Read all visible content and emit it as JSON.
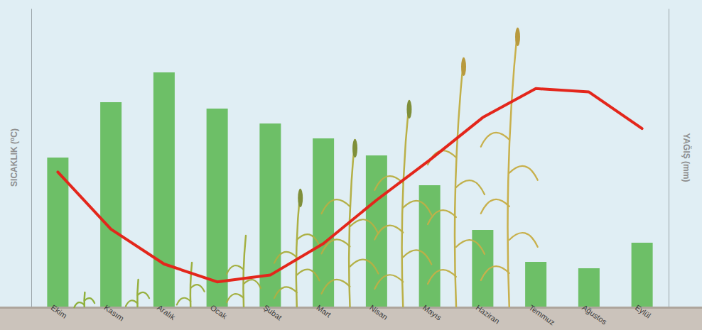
{
  "chart_data": {
    "type": "bar",
    "ylabel": "SICAKLIK (⁰C)",
    "y2label": "YAĞIŞ (mm)",
    "categories": [
      "Ekim",
      "Kasım",
      "Aralık",
      "Ocak",
      "Şubat",
      "Mart",
      "Nisan",
      "Mayıs",
      "Haziran",
      "Temmuz",
      "Ağustos",
      "Eylül"
    ],
    "series": [
      {
        "type": "line",
        "color": "#e3261b",
        "values": [
          15.8,
          9.1,
          5,
          2.9,
          3.7,
          7.4,
          12.5,
          17.2,
          22.2,
          25.6,
          25.2,
          20.9
        ]
      },
      {
        "type": "bar",
        "color": "#6dbf67",
        "axis": "y2",
        "values": [
          70,
          96,
          110,
          93,
          86,
          79,
          71,
          57,
          36,
          21,
          18,
          30
        ]
      }
    ],
    "ylim": [
      0,
      35
    ],
    "y2lim": [
      0,
      140
    ],
    "tick_labels": "x"
  }
}
